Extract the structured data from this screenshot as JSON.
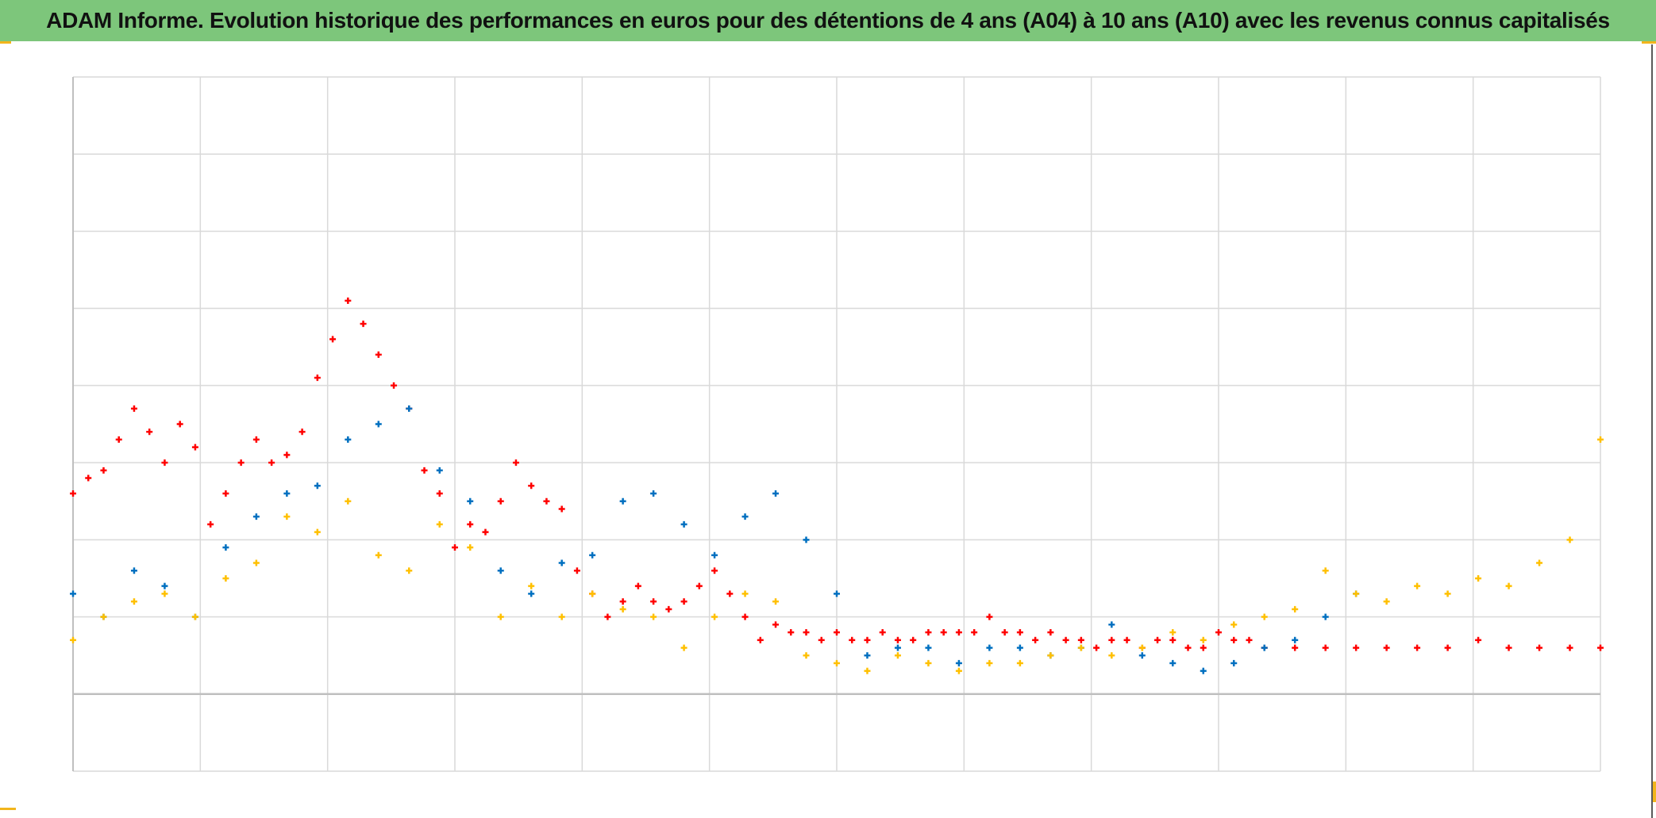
{
  "title": "ADAM Informe. Evolution historique des performances en euros pour des détentions de 4 ans (A04) à 10 ans (A10) avec les revenus connus capitalisés",
  "colors": {
    "title_bar": "#7dc67b",
    "grid": "#d9d9d9",
    "axis": "#bfbfbf",
    "accent_corner": "#f2b51c"
  },
  "chart_data": {
    "type": "scatter",
    "title": "ADAM Informe. Evolution historique des performances en euros pour des détentions de 4 ans (A04) à 10 ans (A10) avec les revenus connus capitalisés",
    "xlabel": "",
    "ylabel": "",
    "x_tick_labels_visible": false,
    "y_tick_labels_visible": false,
    "grid": true,
    "legend": "none",
    "xlim": [
      0,
      1
    ],
    "ylim": [
      -1,
      8
    ],
    "x_gridlines": 13,
    "y_gridlines": 9,
    "marker": "plus",
    "series": [
      {
        "color": "#ff0000",
        "x": [
          0.0,
          0.01,
          0.02,
          0.03,
          0.04,
          0.05,
          0.06,
          0.07,
          0.08,
          0.09,
          0.1,
          0.11,
          0.12,
          0.13,
          0.14,
          0.15,
          0.16,
          0.17,
          0.18,
          0.19,
          0.2,
          0.21,
          0.22,
          0.23,
          0.24,
          0.25,
          0.26,
          0.27,
          0.28,
          0.29,
          0.3,
          0.31,
          0.32,
          0.33,
          0.34,
          0.35,
          0.36,
          0.37,
          0.38,
          0.39,
          0.4,
          0.41,
          0.42,
          0.43,
          0.44,
          0.45,
          0.46,
          0.47,
          0.48,
          0.49,
          0.5,
          0.51,
          0.52,
          0.53,
          0.54,
          0.55,
          0.56,
          0.57,
          0.58,
          0.59,
          0.6,
          0.61,
          0.62,
          0.63,
          0.64,
          0.65,
          0.66,
          0.67,
          0.68,
          0.69,
          0.7,
          0.71,
          0.72,
          0.73,
          0.74,
          0.75,
          0.76,
          0.77,
          0.78,
          0.8,
          0.82,
          0.84,
          0.86,
          0.88,
          0.9,
          0.92,
          0.94,
          0.96,
          0.98,
          1.0
        ],
        "y": [
          2.6,
          2.8,
          2.9,
          3.3,
          3.7,
          3.4,
          3.0,
          3.5,
          3.2,
          2.2,
          2.6,
          3.0,
          3.3,
          3.0,
          3.1,
          3.4,
          4.1,
          4.6,
          5.1,
          4.8,
          4.4,
          4.0,
          3.7,
          2.9,
          2.6,
          1.9,
          2.2,
          2.1,
          2.5,
          3.0,
          2.7,
          2.5,
          2.4,
          1.6,
          1.3,
          1.0,
          1.2,
          1.4,
          1.2,
          1.1,
          1.2,
          1.4,
          1.6,
          1.3,
          1.0,
          0.7,
          0.9,
          0.8,
          0.8,
          0.7,
          0.8,
          0.7,
          0.7,
          0.8,
          0.7,
          0.7,
          0.8,
          0.8,
          0.8,
          0.8,
          1.0,
          0.8,
          0.8,
          0.7,
          0.8,
          0.7,
          0.7,
          0.6,
          0.7,
          0.7,
          0.6,
          0.7,
          0.7,
          0.6,
          0.6,
          0.8,
          0.7,
          0.7,
          0.6,
          0.6,
          0.6,
          0.6,
          0.6,
          0.6,
          0.6,
          0.7,
          0.6,
          0.6,
          0.6,
          0.6
        ]
      },
      {
        "color": "#0070c0",
        "x": [
          0.0,
          0.02,
          0.04,
          0.06,
          0.08,
          0.1,
          0.12,
          0.14,
          0.16,
          0.18,
          0.2,
          0.22,
          0.24,
          0.26,
          0.28,
          0.3,
          0.32,
          0.34,
          0.36,
          0.38,
          0.4,
          0.42,
          0.44,
          0.46,
          0.48,
          0.5,
          0.52,
          0.54,
          0.56,
          0.58,
          0.6,
          0.62,
          0.64,
          0.66,
          0.68,
          0.7,
          0.72,
          0.74,
          0.76,
          0.78,
          0.8,
          0.82,
          0.84
        ],
        "y": [
          1.3,
          1.0,
          1.6,
          1.4,
          1.0,
          1.9,
          2.3,
          2.6,
          2.7,
          3.3,
          3.5,
          3.7,
          2.9,
          2.5,
          1.6,
          1.3,
          1.7,
          1.8,
          2.5,
          2.6,
          2.2,
          1.8,
          2.3,
          2.6,
          2.0,
          1.3,
          0.5,
          0.6,
          0.6,
          0.4,
          0.6,
          0.6,
          0.5,
          0.6,
          0.9,
          0.5,
          0.4,
          0.3,
          0.4,
          0.6,
          0.7,
          1.0,
          1.3
        ]
      },
      {
        "color": "#ffc000",
        "x": [
          0.0,
          0.02,
          0.04,
          0.06,
          0.08,
          0.1,
          0.12,
          0.14,
          0.16,
          0.18,
          0.2,
          0.22,
          0.24,
          0.26,
          0.28,
          0.3,
          0.32,
          0.34,
          0.36,
          0.38,
          0.4,
          0.42,
          0.44,
          0.46,
          0.48,
          0.5,
          0.52,
          0.54,
          0.56,
          0.58,
          0.6,
          0.62,
          0.64,
          0.66,
          0.68,
          0.7,
          0.72,
          0.74,
          0.76,
          0.78,
          0.8,
          0.82,
          0.84,
          0.86,
          0.88,
          0.9,
          0.92,
          0.94,
          0.96,
          0.98,
          1.0
        ],
        "y": [
          0.7,
          1.0,
          1.2,
          1.3,
          1.0,
          1.5,
          1.7,
          2.3,
          2.1,
          2.5,
          1.8,
          1.6,
          2.2,
          1.9,
          1.0,
          1.4,
          1.0,
          1.3,
          1.1,
          1.0,
          0.6,
          1.0,
          1.3,
          1.2,
          0.5,
          0.4,
          0.3,
          0.5,
          0.4,
          0.3,
          0.4,
          0.4,
          0.5,
          0.6,
          0.5,
          0.6,
          0.8,
          0.7,
          0.9,
          1.0,
          1.1,
          1.6,
          1.3,
          1.2,
          1.4,
          1.3,
          1.5,
          1.4,
          1.7,
          2.0,
          3.3
        ]
      }
    ]
  }
}
